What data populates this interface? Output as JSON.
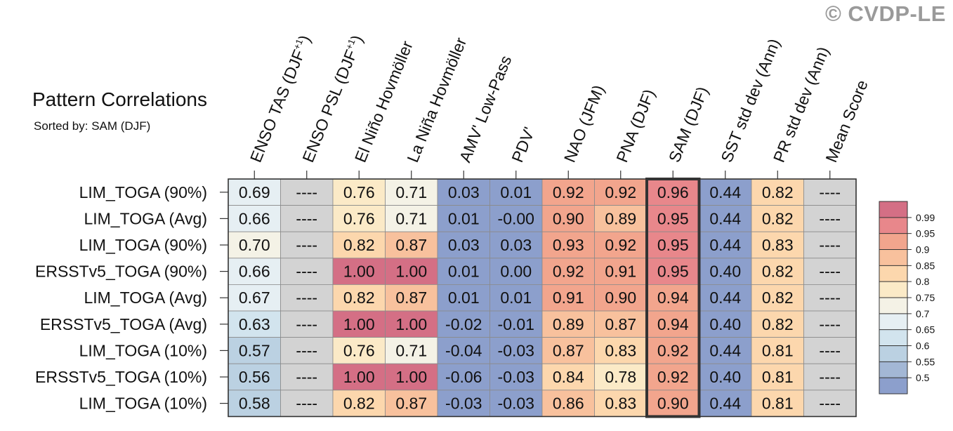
{
  "title": "Pattern Correlations",
  "subtitle": "Sorted by: SAM (DJF)",
  "watermark": "© CVDP-LE",
  "colors": {
    "na": "#d3d3d3",
    "border": "#333333",
    "highlight": "#333333",
    "scale": [
      "#8c9fcc",
      "#a3b7d5",
      "#bbd1e2",
      "#d2e4ee",
      "#e6eff3",
      "#f4f2e6",
      "#fbeac7",
      "#fcd7ad",
      "#f8c19d",
      "#f2a58d",
      "#e8878b",
      "#d46f85"
    ]
  },
  "chart_data": {
    "type": "heatmap",
    "title": "Pattern Correlations",
    "subtitle": "Sorted by: SAM (DJF)",
    "columns": [
      {
        "label": "ENSO TAS (DJF",
        "sup": "+1",
        "tail": ")"
      },
      {
        "label": "ENSO PSL (DJF",
        "sup": "+1",
        "tail": ")"
      },
      {
        "label": "El Niño Hovmöller",
        "sup": "",
        "tail": ""
      },
      {
        "label": "La Niña Hovmöller",
        "sup": "",
        "tail": ""
      },
      {
        "label": "AMV' Low-Pass",
        "sup": "",
        "tail": ""
      },
      {
        "label": "PDV'",
        "sup": "",
        "tail": ""
      },
      {
        "label": "NAO (JFM)",
        "sup": "",
        "tail": ""
      },
      {
        "label": "PNA (DJF)",
        "sup": "",
        "tail": ""
      },
      {
        "label": "SAM (DJF)",
        "sup": "",
        "tail": ""
      },
      {
        "label": "SST std dev (Ann)",
        "sup": "",
        "tail": ""
      },
      {
        "label": "PR std dev (Ann)",
        "sup": "",
        "tail": ""
      },
      {
        "label": "Mean Score",
        "sup": "",
        "tail": ""
      }
    ],
    "rows": [
      "LIM_TOGA (90%)",
      "LIM_TOGA (Avg)",
      "LIM_TOGA (90%)",
      "ERSSTv5_TOGA (90%)",
      "LIM_TOGA (Avg)",
      "ERSSTv5_TOGA (Avg)",
      "LIM_TOGA (10%)",
      "ERSSTv5_TOGA (10%)",
      "LIM_TOGA (10%)"
    ],
    "values": [
      [
        "0.69",
        "----",
        "0.76",
        "0.71",
        "0.03",
        "0.01",
        "0.92",
        "0.92",
        "0.96",
        "0.44",
        "0.82",
        "----"
      ],
      [
        "0.66",
        "----",
        "0.76",
        "0.71",
        "0.01",
        "-0.00",
        "0.90",
        "0.89",
        "0.95",
        "0.44",
        "0.82",
        "----"
      ],
      [
        "0.70",
        "----",
        "0.82",
        "0.87",
        "0.03",
        "0.03",
        "0.93",
        "0.92",
        "0.95",
        "0.44",
        "0.83",
        "----"
      ],
      [
        "0.66",
        "----",
        "1.00",
        "1.00",
        "0.01",
        "0.00",
        "0.92",
        "0.91",
        "0.95",
        "0.40",
        "0.82",
        "----"
      ],
      [
        "0.67",
        "----",
        "0.82",
        "0.87",
        "0.01",
        "0.01",
        "0.91",
        "0.90",
        "0.94",
        "0.44",
        "0.82",
        "----"
      ],
      [
        "0.63",
        "----",
        "1.00",
        "1.00",
        "-0.02",
        "-0.01",
        "0.89",
        "0.87",
        "0.94",
        "0.40",
        "0.82",
        "----"
      ],
      [
        "0.57",
        "----",
        "0.76",
        "0.71",
        "-0.04",
        "-0.03",
        "0.87",
        "0.83",
        "0.92",
        "0.44",
        "0.81",
        "----"
      ],
      [
        "0.56",
        "----",
        "1.00",
        "1.00",
        "-0.06",
        "-0.03",
        "0.84",
        "0.78",
        "0.92",
        "0.40",
        "0.81",
        "----"
      ],
      [
        "0.58",
        "----",
        "0.82",
        "0.87",
        "-0.03",
        "-0.03",
        "0.86",
        "0.83",
        "0.90",
        "0.44",
        "0.81",
        "----"
      ]
    ],
    "highlight_column": "SAM (DJF)",
    "colorbar": {
      "levels": [
        "0.5",
        "0.55",
        "0.6",
        "0.65",
        "0.7",
        "0.75",
        "0.8",
        "0.85",
        "0.9",
        "0.95",
        "0.99"
      ],
      "thresholds": [
        0.5,
        0.55,
        0.6,
        0.65,
        0.7,
        0.75,
        0.8,
        0.85,
        0.9,
        0.95,
        0.99
      ]
    }
  }
}
